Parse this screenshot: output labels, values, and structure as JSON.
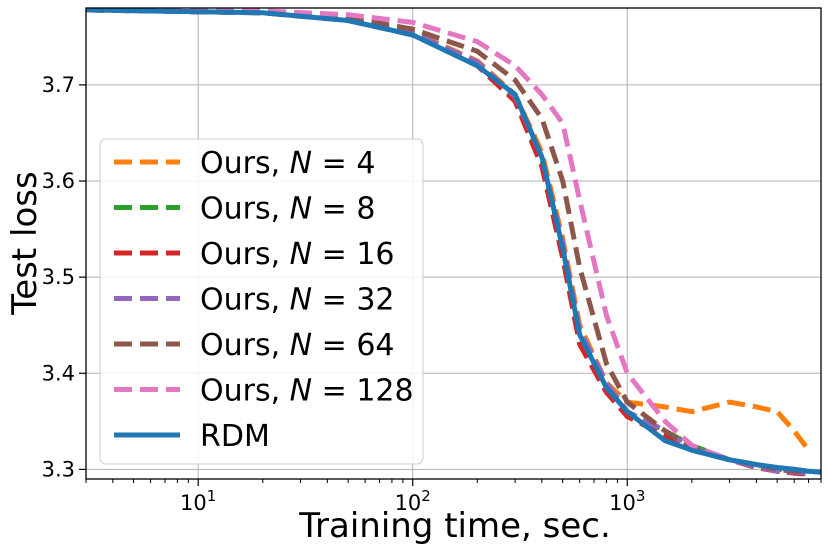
{
  "chart_data": {
    "type": "line",
    "xlabel": "Training time, sec.",
    "ylabel": "Test loss",
    "xscale": "log",
    "xlim": [
      3,
      8000
    ],
    "ylim": [
      3.29,
      3.78
    ],
    "grid": true,
    "legend_position": "lower-left",
    "xticks": [
      {
        "value": 10,
        "base": "10",
        "exp": "1"
      },
      {
        "value": 100,
        "base": "10",
        "exp": "2"
      },
      {
        "value": 1000,
        "base": "10",
        "exp": "3"
      }
    ],
    "yticks": [
      {
        "value": 3.3,
        "label": "3.3"
      },
      {
        "value": 3.4,
        "label": "3.4"
      },
      {
        "value": 3.5,
        "label": "3.5"
      },
      {
        "value": 3.6,
        "label": "3.6"
      },
      {
        "value": 3.7,
        "label": "3.7"
      }
    ],
    "series": [
      {
        "name": "Ours, N = 4",
        "prefix": "Ours, ",
        "var": "N",
        "eq": " = ",
        "n": "4",
        "color": "#ff7f0e",
        "style": "dashed",
        "x": [
          3,
          20,
          50,
          100,
          200,
          300,
          400,
          500,
          600,
          800,
          1000,
          1500,
          2000,
          3000,
          4000,
          5000,
          6000,
          7000
        ],
        "y": [
          3.778,
          3.775,
          3.768,
          3.755,
          3.725,
          3.69,
          3.63,
          3.54,
          3.45,
          3.39,
          3.37,
          3.365,
          3.36,
          3.37,
          3.365,
          3.36,
          3.34,
          3.32
        ]
      },
      {
        "name": "Ours, N = 8",
        "prefix": "Ours, ",
        "var": "N",
        "eq": " = ",
        "n": "8",
        "color": "#2ca02c",
        "style": "dashed",
        "x": [
          3,
          20,
          50,
          100,
          200,
          300,
          400,
          500,
          600,
          800,
          1000,
          1500,
          2000,
          3000,
          4000,
          5000,
          6000,
          7000
        ],
        "y": [
          3.778,
          3.775,
          3.768,
          3.753,
          3.722,
          3.685,
          3.62,
          3.53,
          3.44,
          3.385,
          3.36,
          3.34,
          3.325,
          3.31,
          3.305,
          3.3,
          3.3,
          3.298
        ]
      },
      {
        "name": "Ours, N = 16",
        "prefix": "Ours, ",
        "var": "N",
        "eq": " = ",
        "n": "16",
        "color": "#d62728",
        "style": "dashed",
        "x": [
          3,
          20,
          50,
          100,
          200,
          300,
          400,
          500,
          600,
          800,
          1000,
          1500,
          2000,
          3000,
          4000,
          5000,
          6000,
          7000
        ],
        "y": [
          3.778,
          3.775,
          3.767,
          3.752,
          3.72,
          3.683,
          3.615,
          3.52,
          3.43,
          3.38,
          3.355,
          3.335,
          3.32,
          3.31,
          3.302,
          3.298,
          3.296,
          3.295
        ]
      },
      {
        "name": "Ours, N = 32",
        "prefix": "Ours, ",
        "var": "N",
        "eq": " = ",
        "n": "32",
        "color": "#9467bd",
        "style": "dashed",
        "x": [
          3,
          20,
          50,
          100,
          200,
          300,
          400,
          500,
          600,
          800,
          1000,
          1500,
          2000,
          3000,
          4000,
          5000,
          6000,
          7000
        ],
        "y": [
          3.778,
          3.775,
          3.768,
          3.754,
          3.724,
          3.688,
          3.625,
          3.535,
          3.445,
          3.39,
          3.36,
          3.34,
          3.322,
          3.31,
          3.303,
          3.298,
          3.297,
          3.296
        ]
      },
      {
        "name": "Ours, N = 64",
        "prefix": "Ours, ",
        "var": "N",
        "eq": " = ",
        "n": "64",
        "color": "#8c564b",
        "style": "dashed",
        "x": [
          3,
          20,
          50,
          100,
          200,
          300,
          400,
          500,
          600,
          800,
          1000,
          1500,
          2000,
          3000,
          4000,
          5000,
          6000,
          7000
        ],
        "y": [
          3.778,
          3.776,
          3.77,
          3.758,
          3.735,
          3.705,
          3.665,
          3.6,
          3.51,
          3.41,
          3.37,
          3.34,
          3.322,
          3.31,
          3.305,
          3.3,
          3.298,
          3.297
        ]
      },
      {
        "name": "Ours, N = 128",
        "prefix": "Ours, ",
        "var": "N",
        "eq": " = ",
        "n": "128",
        "color": "#e377c2",
        "style": "dashed",
        "x": [
          3,
          20,
          50,
          100,
          200,
          300,
          400,
          500,
          600,
          800,
          1000,
          1500,
          2000,
          3000,
          4000,
          5000,
          6000,
          7000
        ],
        "y": [
          3.778,
          3.777,
          3.773,
          3.765,
          3.745,
          3.72,
          3.69,
          3.66,
          3.58,
          3.46,
          3.4,
          3.35,
          3.325,
          3.31,
          3.305,
          3.302,
          3.3,
          3.298
        ]
      },
      {
        "name": "RDM",
        "prefix": "RDM",
        "var": "",
        "eq": "",
        "n": "",
        "color": "#1f77b4",
        "style": "solid",
        "x": [
          3,
          20,
          50,
          100,
          200,
          300,
          400,
          500,
          600,
          800,
          1000,
          1500,
          2000,
          3000,
          4000,
          5000,
          6000,
          7000,
          8000
        ],
        "y": [
          3.778,
          3.775,
          3.767,
          3.752,
          3.72,
          3.69,
          3.625,
          3.53,
          3.44,
          3.385,
          3.36,
          3.33,
          3.32,
          3.31,
          3.305,
          3.302,
          3.3,
          3.298,
          3.297
        ]
      }
    ]
  }
}
